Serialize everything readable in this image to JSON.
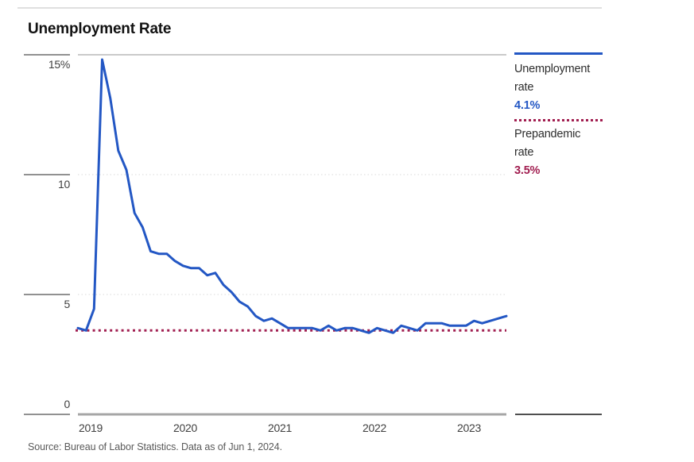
{
  "header": {
    "title": "Unemployment Rate"
  },
  "legend": {
    "unemployment": {
      "label": "Unemployment rate",
      "value": "4.1%"
    },
    "prepandemic": {
      "label": "Prepandemic rate",
      "value": "3.5%"
    }
  },
  "footer": {
    "source": "Source: Bureau of Labor Statistics. Data as of Jun 1, 2024."
  },
  "colors": {
    "unemployment_line": "#2357C4",
    "prepandemic_line": "#A11E50",
    "axis_gray": "#a6a6a6",
    "tick_dark_gray": "#4f4f4f",
    "gridline_light": "#d9d9d9"
  },
  "chart_data": {
    "type": "line",
    "title": "Unemployment Rate",
    "unit": "percent",
    "ylim": [
      0,
      15
    ],
    "y_ticks": [
      15,
      10,
      5,
      0
    ],
    "y_tick_labels": [
      "15%",
      "10",
      "5",
      "0"
    ],
    "x_tick_labels": [
      "2019",
      "2020",
      "2021",
      "2022",
      "2023"
    ],
    "x_months_start": "2020-01",
    "x_months_end": "2024-06",
    "gridlines": {
      "solid_top": 15,
      "dotted": [
        10,
        5
      ]
    },
    "legend_position": "right",
    "series": [
      {
        "name": "Unemployment rate",
        "style": "solid",
        "color": "#2357C4",
        "latest_label": "4.1%",
        "values": [
          3.6,
          3.5,
          4.4,
          14.8,
          13.2,
          11.0,
          10.2,
          8.4,
          7.8,
          6.8,
          6.7,
          6.7,
          6.4,
          6.2,
          6.1,
          6.1,
          5.8,
          5.9,
          5.4,
          5.1,
          4.7,
          4.5,
          4.1,
          3.9,
          4.0,
          3.8,
          3.6,
          3.6,
          3.6,
          3.6,
          3.5,
          3.7,
          3.5,
          3.6,
          3.6,
          3.5,
          3.4,
          3.6,
          3.5,
          3.4,
          3.7,
          3.6,
          3.5,
          3.8,
          3.8,
          3.8,
          3.7,
          3.7,
          3.7,
          3.9,
          3.8,
          3.9,
          4.0,
          4.1
        ]
      },
      {
        "name": "Prepandemic rate",
        "style": "dotted",
        "color": "#A11E50",
        "latest_label": "3.5%",
        "constant_value": 3.5
      }
    ]
  }
}
